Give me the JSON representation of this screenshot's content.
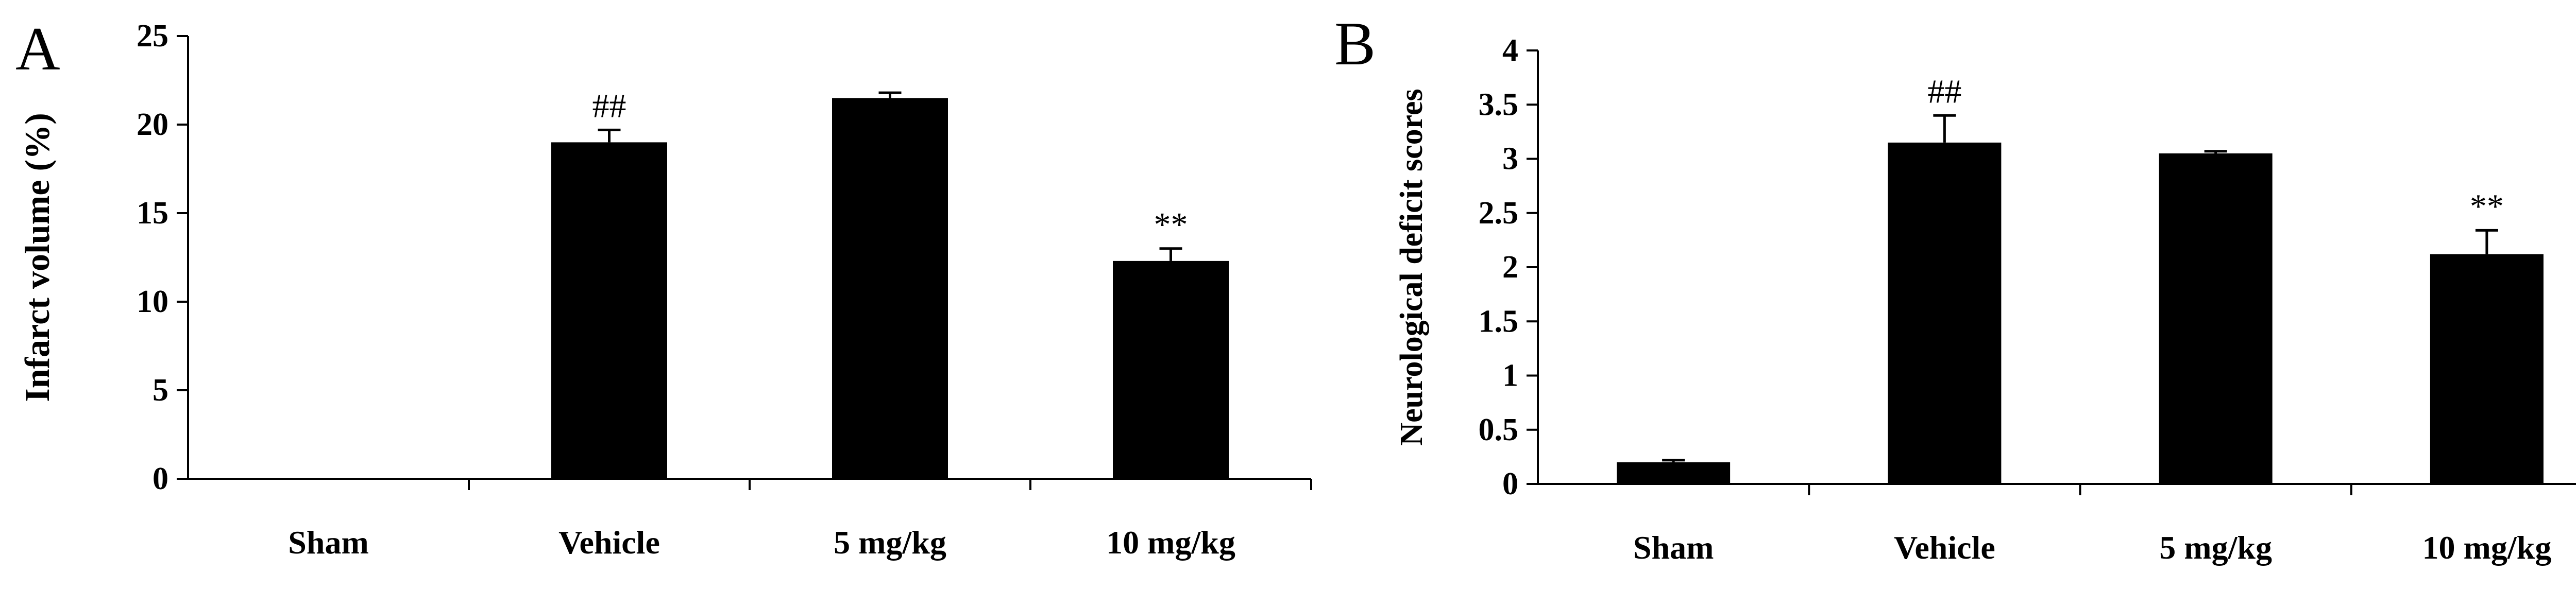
{
  "chart_data": [
    {
      "type": "bar",
      "panel_label": "A",
      "categories": [
        "Sham",
        "Vehicle",
        "5 mg/kg",
        "10 mg/kg"
      ],
      "values": [
        0,
        19,
        21.5,
        12.3
      ],
      "errors": [
        0,
        0.7,
        0.3,
        0.7
      ],
      "annotations": [
        "",
        "##",
        "",
        "**"
      ],
      "ylabel": "Infarct volume (%)",
      "xlabel": "",
      "ylim": [
        0,
        25
      ],
      "yticks": [
        0,
        5,
        10,
        15,
        20,
        25
      ],
      "ytick_labels": [
        "0",
        "5",
        "10",
        "15",
        "20",
        "25"
      ],
      "grid": false,
      "bar_color": "#000000"
    },
    {
      "type": "bar",
      "panel_label": "B",
      "categories": [
        "Sham",
        "Vehicle",
        "5 mg/kg",
        "10 mg/kg"
      ],
      "values": [
        0.2,
        3.15,
        3.05,
        2.12
      ],
      "errors": [
        0.02,
        0.25,
        0.02,
        0.22
      ],
      "annotations": [
        "",
        "##",
        "",
        "**"
      ],
      "ylabel": "Neurological deficit scores",
      "xlabel": "",
      "ylim": [
        0,
        4
      ],
      "yticks": [
        0,
        0.5,
        1,
        1.5,
        2,
        2.5,
        3,
        3.5,
        4
      ],
      "ytick_labels": [
        "0",
        "0.5",
        "1",
        "1.5",
        "2",
        "2.5",
        "3",
        "3.5",
        "4"
      ],
      "grid": false,
      "bar_color": "#000000"
    }
  ]
}
